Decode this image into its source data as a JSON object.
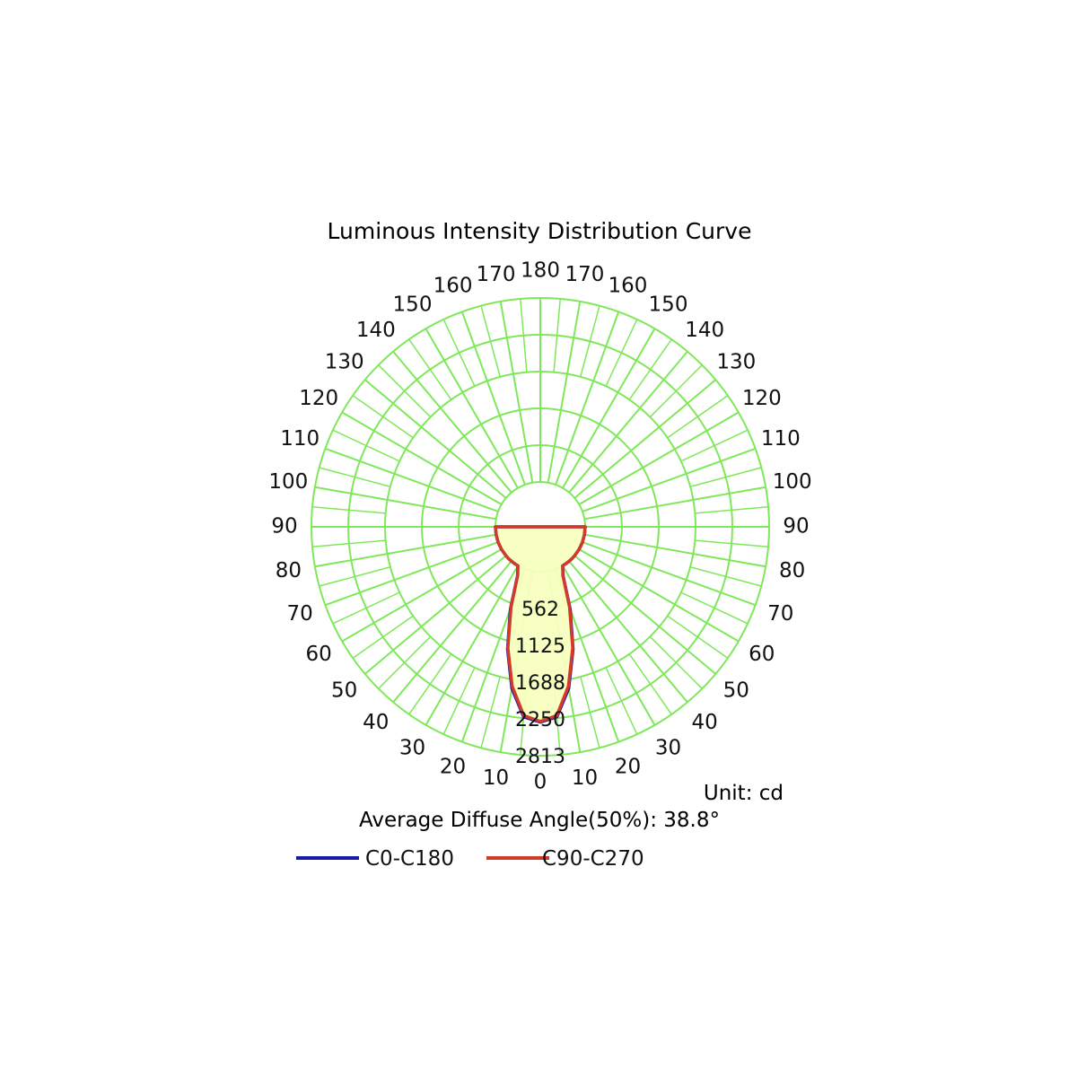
{
  "chart_data": {
    "type": "polar",
    "title": "Luminous Intensity Distribution Curve",
    "unit_label": "Unit: cd",
    "diffuse_angle_text": "Average Diffuse Angle(50%): 38.8°",
    "angle_labels_left": [
      "180",
      "170",
      "160",
      "150",
      "140",
      "130",
      "120",
      "110",
      "100",
      "90",
      "80",
      "70",
      "60",
      "50",
      "40",
      "30",
      "20",
      "10",
      "0"
    ],
    "angle_labels_right": [
      "170",
      "160",
      "150",
      "140",
      "130",
      "120",
      "110",
      "100",
      "90",
      "80",
      "70",
      "60",
      "50",
      "40",
      "30",
      "20",
      "10"
    ],
    "radial_ticks": [
      "562",
      "1125",
      "1688",
      "2250",
      "2813"
    ],
    "radial_tick_values": [
      562,
      1125,
      1688,
      2250,
      2813
    ],
    "r_max": 2813,
    "grid": true,
    "grid_color": "#7fe85a",
    "fill_color": "#f7ffbf",
    "legend_position": "bottom",
    "series": [
      {
        "name": "C0-C180",
        "color": "#1a1aa8",
        "angles": [
          -90,
          -80,
          -70,
          -60,
          -50,
          -45,
          -40,
          -35,
          -30,
          -25,
          -20,
          -15,
          -10,
          -5,
          0,
          5,
          10,
          15,
          20,
          25,
          30,
          35,
          40,
          45,
          50,
          60,
          70,
          80,
          90
        ],
        "values": [
          0,
          0,
          0,
          0,
          0,
          0,
          0,
          0,
          0,
          140,
          650,
          1250,
          1820,
          2230,
          2300,
          2230,
          1820,
          1250,
          650,
          140,
          0,
          0,
          0,
          0,
          0,
          0,
          0,
          0,
          0
        ]
      },
      {
        "name": "C90-C270",
        "color": "#d23a2a",
        "angles": [
          -90,
          -80,
          -70,
          -60,
          -50,
          -45,
          -40,
          -35,
          -30,
          -25,
          -20,
          -15,
          -10,
          -5,
          0,
          5,
          10,
          15,
          20,
          25,
          30,
          35,
          40,
          45,
          50,
          60,
          70,
          80,
          90
        ],
        "values": [
          0,
          0,
          0,
          0,
          0,
          0,
          0,
          0,
          0,
          130,
          620,
          1230,
          1790,
          2210,
          2290,
          2210,
          1790,
          1230,
          620,
          130,
          0,
          0,
          0,
          0,
          0,
          0,
          0,
          0,
          0
        ]
      }
    ]
  }
}
